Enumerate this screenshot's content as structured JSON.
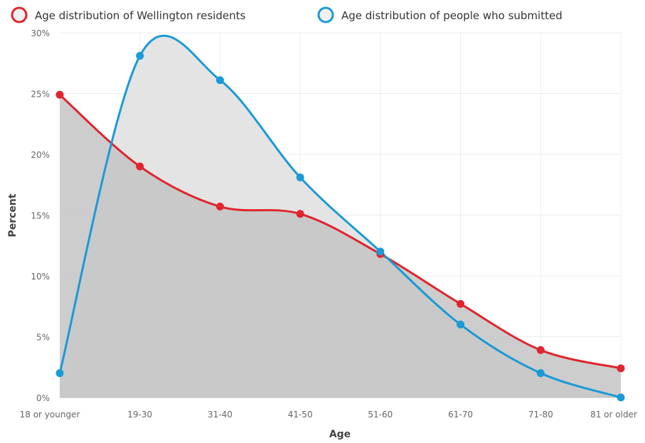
{
  "chart_data": {
    "type": "area",
    "xlabel": "Age",
    "ylabel": "Percent",
    "categories": [
      "18 or younger",
      "19-30",
      "31-40",
      "41-50",
      "51-60",
      "61-70",
      "71-80",
      "81 or older"
    ],
    "yticks": [
      "0%",
      "5%",
      "10%",
      "15%",
      "20%",
      "25%",
      "30%"
    ],
    "ylim": [
      0,
      30
    ],
    "grid": true,
    "legend_position": "top-left",
    "series": [
      {
        "name": "Age distribution of Wellington residents",
        "color": "#e0252c",
        "fill": "#c4c4c4",
        "values": [
          24.9,
          19.0,
          15.7,
          15.1,
          11.8,
          7.7,
          3.9,
          2.4
        ]
      },
      {
        "name": "Age distribution of people who submitted",
        "color": "#1a9ad6",
        "fill": "#e4e4e4",
        "values": [
          2.0,
          28.1,
          26.1,
          18.1,
          12.0,
          6.0,
          2.0,
          0.0
        ]
      }
    ]
  }
}
